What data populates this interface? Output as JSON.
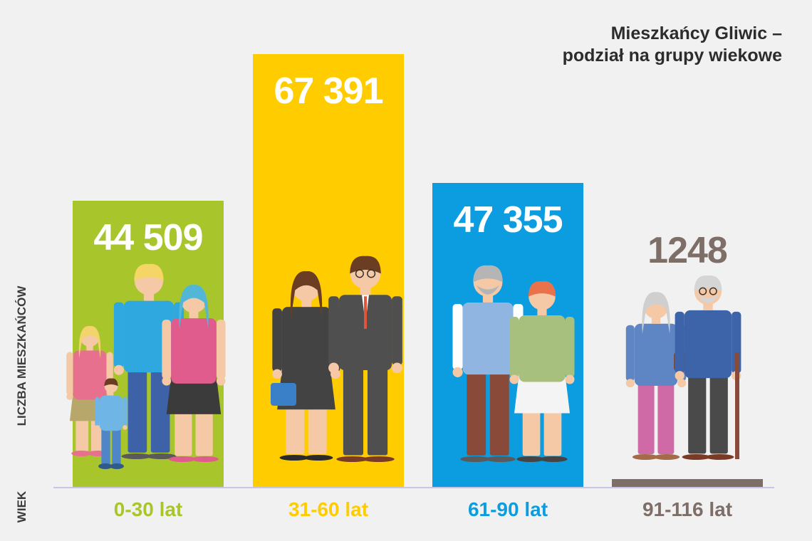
{
  "title_line1": "Mieszkańcy Gliwic –",
  "title_line2": "podział na grupy wiekowe",
  "ylabel": "LICZBA MIESZKAŃCÓW",
  "xlabel": "WIEK",
  "chart_data": {
    "type": "bar",
    "title": "Mieszkańcy Gliwic – podział na grupy wiekowe",
    "xlabel": "WIEK",
    "ylabel": "LICZBA MIESZKAŃCÓW",
    "categories": [
      "0-30 lat",
      "31-60 lat",
      "61-90 lat",
      "91-116 lat"
    ],
    "values": [
      44509,
      67391,
      47355,
      1248
    ],
    "value_labels": [
      "44 509",
      "67 391",
      "47 355",
      "1248"
    ],
    "colors": [
      "#a8c62c",
      "#ffcc00",
      "#0b9de0",
      "#7d6e68"
    ],
    "value_label_colors": [
      "#ffffff",
      "#ffffff",
      "#ffffff",
      "#7d6e68"
    ],
    "ylim": [
      0,
      67391
    ],
    "grid": false,
    "legend": "none"
  },
  "icons": [
    "family-young-icon",
    "business-couple-icon",
    "middle-aged-couple-icon",
    "elderly-couple-icon"
  ]
}
